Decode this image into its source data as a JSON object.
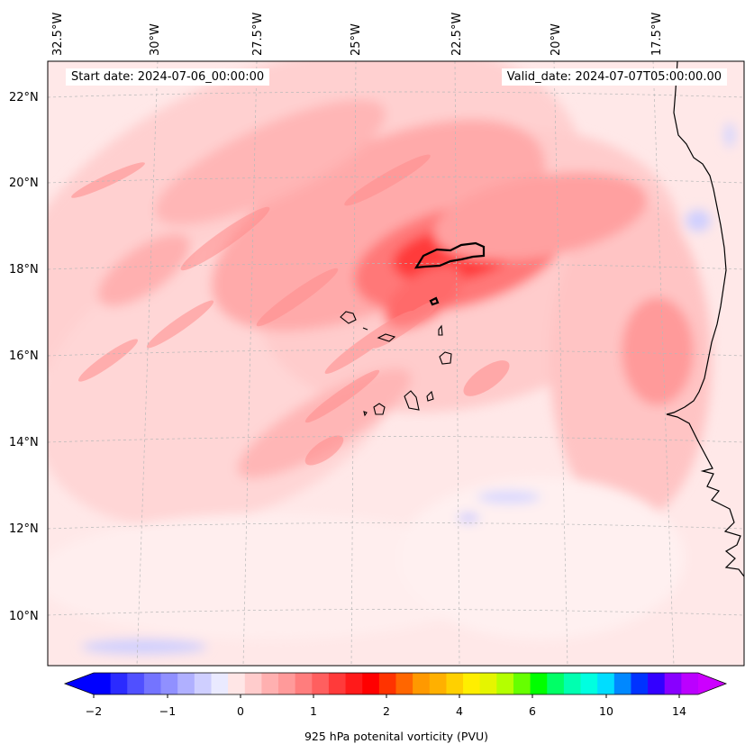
{
  "header": {
    "start_date": "Start date: 2024-07-06_00:00:00",
    "valid_date": "Valid_date: 2024-07-07T05:00:00.00"
  },
  "map": {
    "lon_labels": [
      "32.5°W",
      "30°W",
      "27.5°W",
      "25°W",
      "22.5°W",
      "20°W",
      "17.5°W"
    ],
    "lat_labels": [
      "22°N",
      "20°N",
      "18°N",
      "16°N",
      "14°N",
      "12°N",
      "10°N"
    ],
    "gridlines": "dashed grey",
    "coastlines": "black"
  },
  "colorbar": {
    "title": "925 hPa potenital vorticity (PVU)",
    "tick_labels": [
      "−2",
      "−1",
      "0",
      "1",
      "2",
      "4",
      "6",
      "10",
      "14"
    ],
    "extend": "both",
    "colors": [
      "#0000ff",
      "#2b2bff",
      "#5050ff",
      "#7474ff",
      "#9090ff",
      "#b0b0ff",
      "#cfcfff",
      "#eaeaff",
      "#ffe6e6",
      "#ffcccc",
      "#ffb0b0",
      "#ff9a9a",
      "#ff7d7d",
      "#ff5f5f",
      "#ff3a3a",
      "#ff1a1a",
      "#ff0000",
      "#ff3300",
      "#ff6600",
      "#ff9900",
      "#ffb000",
      "#ffd000",
      "#ffee00",
      "#e5f500",
      "#b4ff00",
      "#66ff00",
      "#00ff00",
      "#00ff66",
      "#00ffb0",
      "#00ffe0",
      "#00ddff",
      "#0088ff",
      "#0033ff",
      "#3300ff",
      "#8800ff",
      "#bb00ff"
    ],
    "over_color": "#cc00ff",
    "under_color": "#0000ff"
  }
}
